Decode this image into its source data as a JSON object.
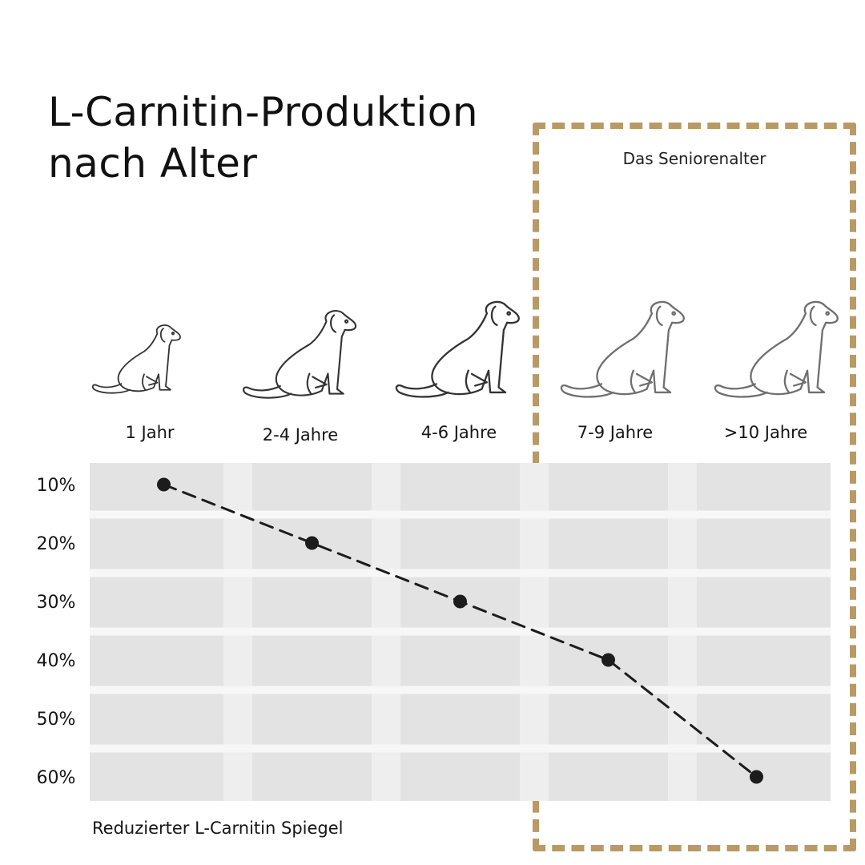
{
  "title_line1": "L-Carnitin-Produktion",
  "title_line2": "nach Alter",
  "senior_label": "Das Seniorenalter",
  "footnote": "Reduzierter L-Carnitin Spiegel",
  "colors": {
    "senior_box": "#b99a66",
    "band": "#e3e3e3",
    "band_alt": "#eeeeee",
    "dot": "#1c1c1c",
    "dog_stroke": "#333333",
    "dog_stroke_senior": "#6f6f6f"
  },
  "ages": [
    {
      "label": "1 Jahr",
      "icon": "puppy-icon"
    },
    {
      "label": "2-4 Jahre",
      "icon": "young-dog-icon"
    },
    {
      "label": "4-6 Jahre",
      "icon": "adult-dog-icon"
    },
    {
      "label": "7-9 Jahre",
      "icon": "senior-dog-icon"
    },
    {
      "label": ">10 Jahre",
      "icon": "old-dog-icon"
    }
  ],
  "chart_data": {
    "type": "line",
    "categories": [
      "1 Jahr",
      "2-4 Jahre",
      "4-6 Jahre",
      "7-9 Jahre",
      ">10 Jahre"
    ],
    "yticks": [
      "10%",
      "20%",
      "30%",
      "40%",
      "50%",
      "60%"
    ],
    "ylim": [
      10,
      60
    ],
    "y_inverted": true,
    "series": [
      {
        "values": [
          10,
          20,
          30,
          40,
          60
        ],
        "style": "dashed"
      }
    ],
    "grid": true
  }
}
